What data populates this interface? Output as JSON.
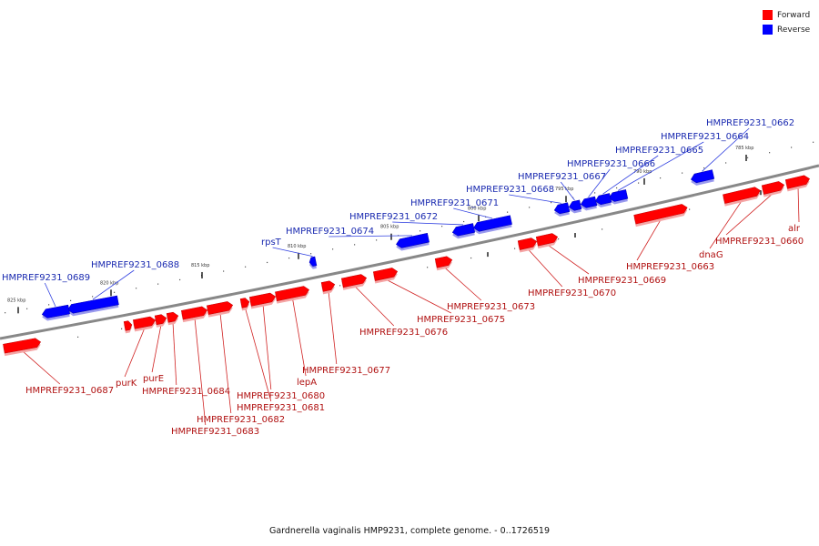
{
  "colors": {
    "forward": "#ff0000",
    "reverse": "#0000ff",
    "backbone": "#888888"
  },
  "legend": [
    {
      "label": "Forward",
      "color": "#ff0000"
    },
    {
      "label": "Reverse",
      "color": "#0000ff"
    }
  ],
  "caption": "Gardnerella vaginalis HMP9231, complete genome. - 0..1726519",
  "scale_labels": [
    "785 kbp",
    "790 kbp",
    "795 kbp",
    "800 kbp",
    "805 kbp",
    "810 kbp",
    "815 kbp",
    "820 kbp",
    "825 kbp"
  ],
  "reverse_genes": [
    "HMPREF9231_0662",
    "HMPREF9231_0664",
    "HMPREF9231_0665",
    "HMPREF9231_0666",
    "HMPREF9231_0667",
    "HMPREF9231_0668",
    "HMPREF9231_0671",
    "HMPREF9231_0672",
    "HMPREF9231_0674",
    "rpsT",
    "HMPREF9231_0688",
    "HMPREF9231_0689"
  ],
  "forward_genes": [
    "alr",
    "HMPREF9231_0660",
    "dnaG",
    "HMPREF9231_0663",
    "HMPREF9231_0669",
    "HMPREF9231_0670",
    "HMPREF9231_0673",
    "HMPREF9231_0675",
    "HMPREF9231_0676",
    "HMPREF9231_0677",
    "lepA",
    "HMPREF9231_0680",
    "HMPREF9231_0681",
    "HMPREF9231_0682",
    "HMPREF9231_0683",
    "HMPREF9231_0684",
    "purE",
    "purK",
    "HMPREF9231_0687"
  ]
}
